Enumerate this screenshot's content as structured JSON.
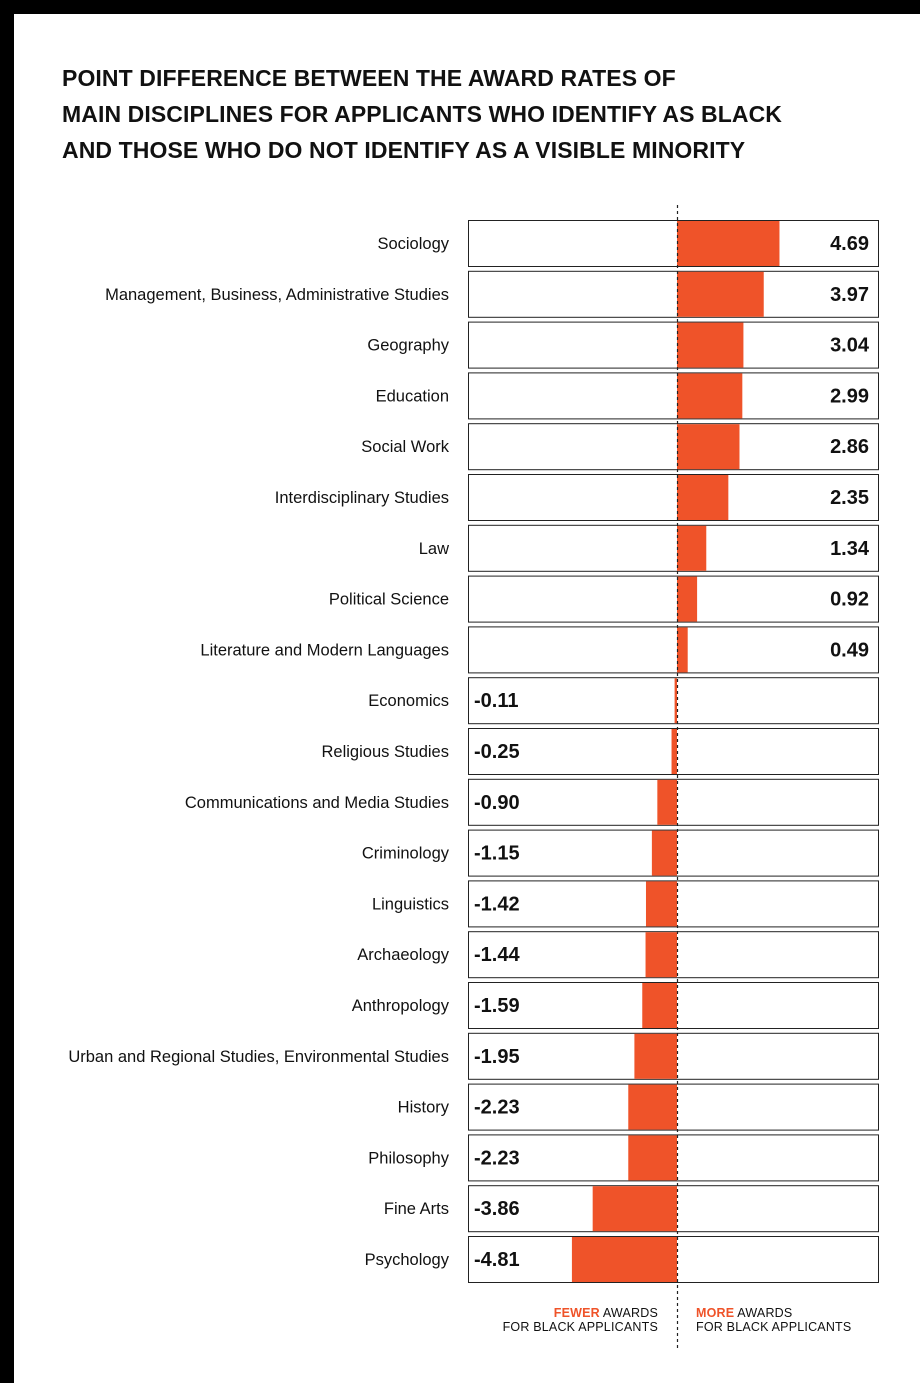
{
  "colors": {
    "bar": "#ef5329",
    "frame": "#000000",
    "text": "#111111",
    "box_border": "#222222"
  },
  "chart_data": {
    "type": "bar",
    "orientation": "horizontal",
    "title": "POINT DIFFERENCE BETWEEN THE AWARD RATES OF MAIN DISCIPLINES FOR APPLICANTS WHO IDENTIFY AS BLACK AND THOSE WHO DO NOT IDENTIFY AS A VISIBLE MINORITY",
    "title_lines": [
      "POINT DIFFERENCE BETWEEN THE AWARD RATES OF",
      "MAIN DISCIPLINES FOR APPLICANTS WHO IDENTIFY AS BLACK",
      "AND THOSE WHO DO NOT IDENTIFY AS A VISIBLE MINORITY"
    ],
    "categories": [
      "Sociology",
      "Management, Business, Administrative Studies",
      "Geography",
      "Education",
      "Social Work",
      "Interdisciplinary Studies",
      "Law",
      "Political Science",
      "Literature and Modern Languages",
      "Economics",
      "Religious Studies",
      "Communications and Media Studies",
      "Criminology",
      "Linguistics",
      "Archaeology",
      "Anthropology",
      "Urban and Regional Studies, Environmental Studies",
      "History",
      "Philosophy",
      "Fine Arts",
      "Psychology"
    ],
    "values": [
      4.69,
      3.97,
      3.04,
      2.99,
      2.86,
      2.35,
      1.34,
      0.92,
      0.49,
      -0.11,
      -0.25,
      -0.9,
      -1.15,
      -1.42,
      -1.44,
      -1.59,
      -1.95,
      -2.23,
      -2.23,
      -3.86,
      -4.81
    ],
    "value_labels": [
      "4.69",
      "3.97",
      "3.04",
      "2.99",
      "2.86",
      "2.35",
      "1.34",
      "0.92",
      "0.49",
      "-0.11",
      "-0.25",
      "-0.90",
      "-1.15",
      "-1.42",
      "-1.44",
      "-1.59",
      "-1.95",
      "-2.23",
      "-2.23",
      "-3.86",
      "-4.81"
    ],
    "xlim": [
      -9.2,
      9.2
    ],
    "baseline": 0,
    "grid": false,
    "legend": {
      "left": {
        "highlight": "FEWER",
        "rest": " AWARDS",
        "line2": "FOR BLACK APPLICANTS"
      },
      "right": {
        "highlight": "MORE",
        "rest": " AWARDS",
        "line2": "FOR BLACK APPLICANTS"
      }
    }
  }
}
